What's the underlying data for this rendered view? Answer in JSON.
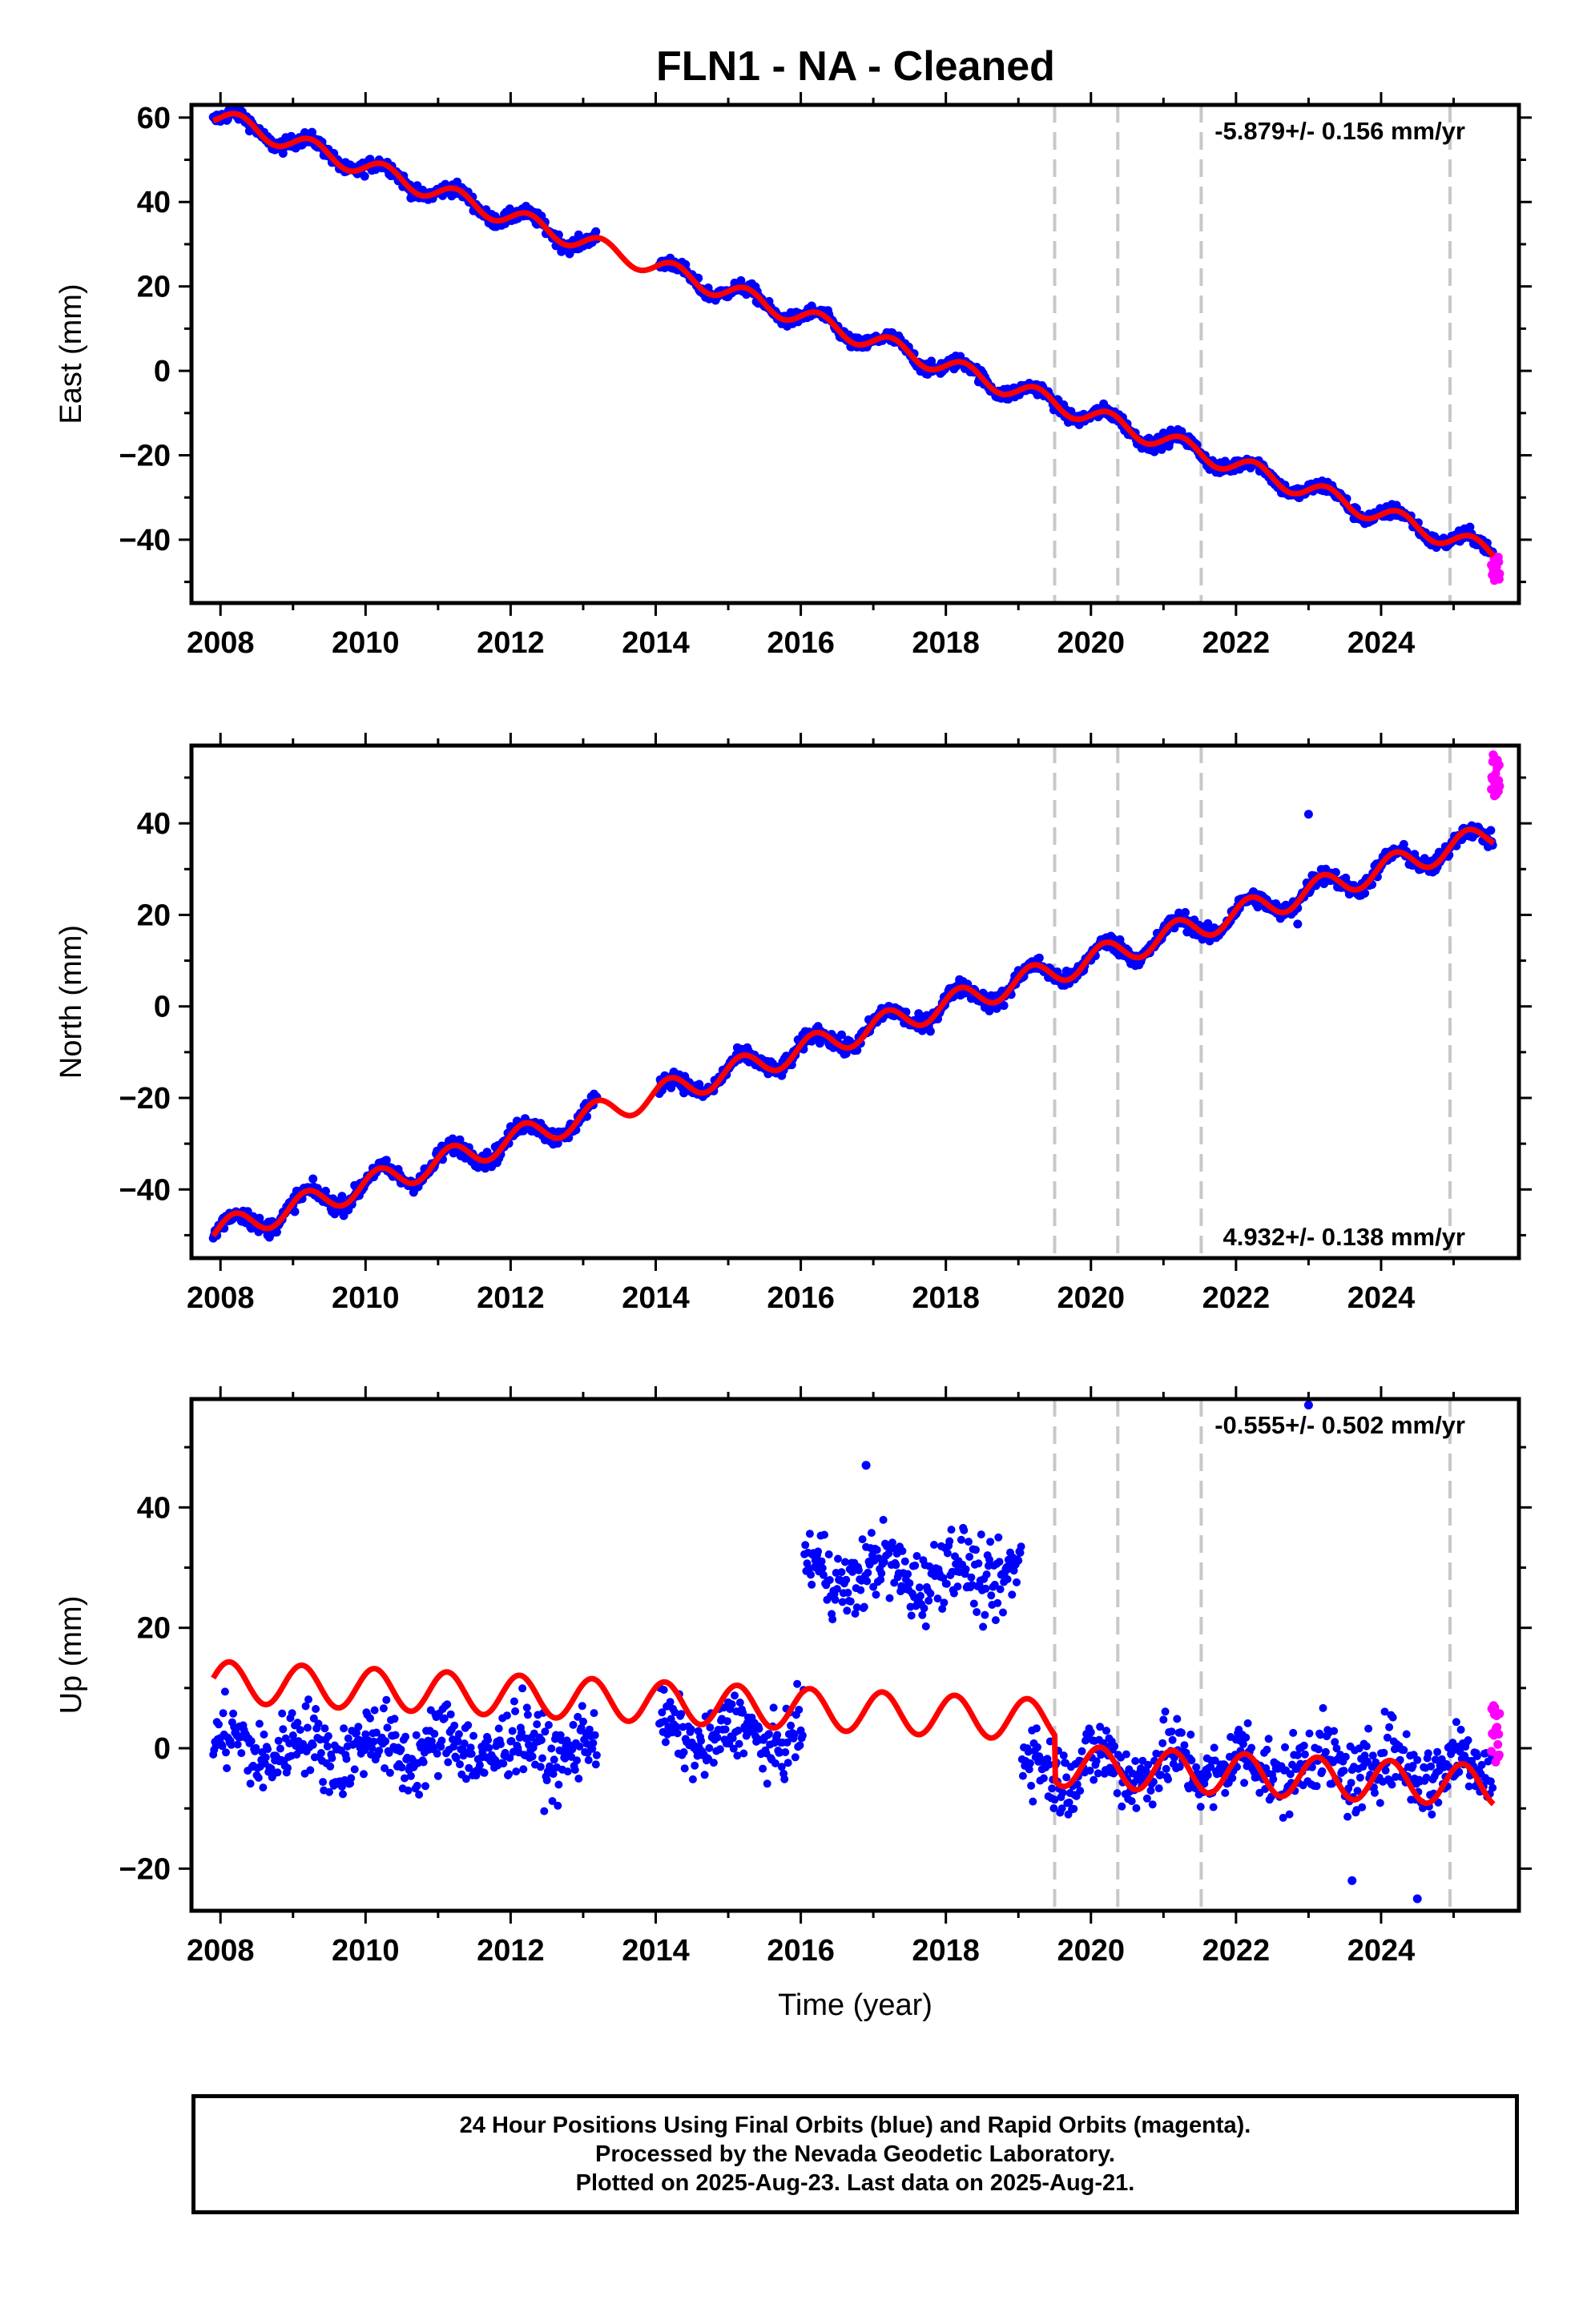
{
  "title": "FLN1  - NA - Cleaned",
  "footer": {
    "line1": "24 Hour Positions Using Final Orbits (blue) and Rapid Orbits (magenta).",
    "line2": "Processed by the Nevada Geodetic Laboratory.",
    "line3": "Plotted on 2025-Aug-23. Last data on 2025-Aug-21."
  },
  "colors": {
    "final": "#0000ff",
    "rapid": "#ff00ff",
    "model": "#ff0000",
    "breaks": "#c8c8c8"
  },
  "chart_data": [
    {
      "type": "scatter",
      "ylabel": "East (mm)",
      "xlabel": "",
      "rate": "-5.879+/- 0.156 mm/yr",
      "rate_position": "top-right",
      "xlim": [
        2007.6,
        2025.9
      ],
      "ylim": [
        -55,
        63
      ],
      "xticks": [
        2008,
        2010,
        2012,
        2014,
        2016,
        2018,
        2020,
        2022,
        2024
      ],
      "yticks": [
        -40,
        -20,
        0,
        20,
        40,
        60
      ],
      "breaks": [
        2019.5,
        2020.37,
        2021.52,
        2024.95
      ],
      "model": {
        "base": 60,
        "slope": -5.879,
        "amp": 2.2,
        "phase": 0.0,
        "offsets": [],
        "start": 2007.9,
        "end": 2025.55
      },
      "gaps": [
        [
          2013.2,
          2014.05
        ]
      ],
      "noise": 1.6,
      "rapid": {
        "start": 2025.52,
        "end": 2025.64,
        "ymin": -50,
        "ymax": -44
      },
      "outliers": []
    },
    {
      "type": "scatter",
      "ylabel": "North (mm)",
      "xlabel": "",
      "rate": "4.932+/- 0.138 mm/yr",
      "rate_position": "bottom-right",
      "xlim": [
        2007.6,
        2025.9
      ],
      "ylim": [
        -55,
        57
      ],
      "xticks": [
        2008,
        2010,
        2012,
        2014,
        2016,
        2018,
        2020,
        2022,
        2024
      ],
      "yticks": [
        -40,
        -20,
        0,
        20,
        40
      ],
      "breaks": [
        2019.5,
        2020.37,
        2021.52,
        2024.95
      ],
      "model": {
        "base": -49,
        "slope": 4.932,
        "amp": 2.8,
        "phase": 0.4,
        "offsets": [],
        "start": 2007.9,
        "end": 2025.55
      },
      "gaps": [
        [
          2013.2,
          2014.05
        ]
      ],
      "noise": 1.8,
      "rapid": {
        "start": 2025.52,
        "end": 2025.64,
        "ymin": 46,
        "ymax": 55
      },
      "outliers": [
        [
          2022.85,
          18
        ],
        [
          2023.0,
          42
        ]
      ]
    },
    {
      "type": "scatter",
      "ylabel": "Up (mm)",
      "xlabel": "Time (year)",
      "rate": "-0.555+/- 0.502 mm/yr",
      "rate_position": "top-right",
      "xlim": [
        2007.6,
        2025.9
      ],
      "ylim": [
        -27,
        58
      ],
      "xticks": [
        2008,
        2010,
        2012,
        2014,
        2016,
        2018,
        2020,
        2022,
        2024
      ],
      "yticks": [
        -20,
        0,
        20,
        40
      ],
      "breaks": [
        2019.5,
        2020.37,
        2021.52,
        2024.95
      ],
      "model": {
        "base": 11,
        "slope": -0.555,
        "amp": 3.4,
        "phase": 0.8,
        "offsets": [
          [
            2019.5,
            -7.5
          ]
        ],
        "start": 2007.9,
        "end": 2025.55
      },
      "data_segments": [
        {
          "start": 2007.9,
          "end": 2013.2,
          "center": 0,
          "spread": 6
        },
        {
          "start": 2014.05,
          "end": 2016.05,
          "center": 2,
          "spread": 5
        },
        {
          "start": 2016.05,
          "end": 2019.05,
          "center": 29,
          "spread": 6
        },
        {
          "start": 2019.05,
          "end": 2025.55,
          "center": -3,
          "spread": 6
        }
      ],
      "rapid": {
        "start": 2025.52,
        "end": 2025.64,
        "ymin": -3,
        "ymax": 8
      },
      "outliers": [
        [
          2023.0,
          57
        ],
        [
          2024.5,
          -25
        ],
        [
          2023.6,
          -22
        ],
        [
          2016.9,
          47
        ]
      ]
    }
  ]
}
